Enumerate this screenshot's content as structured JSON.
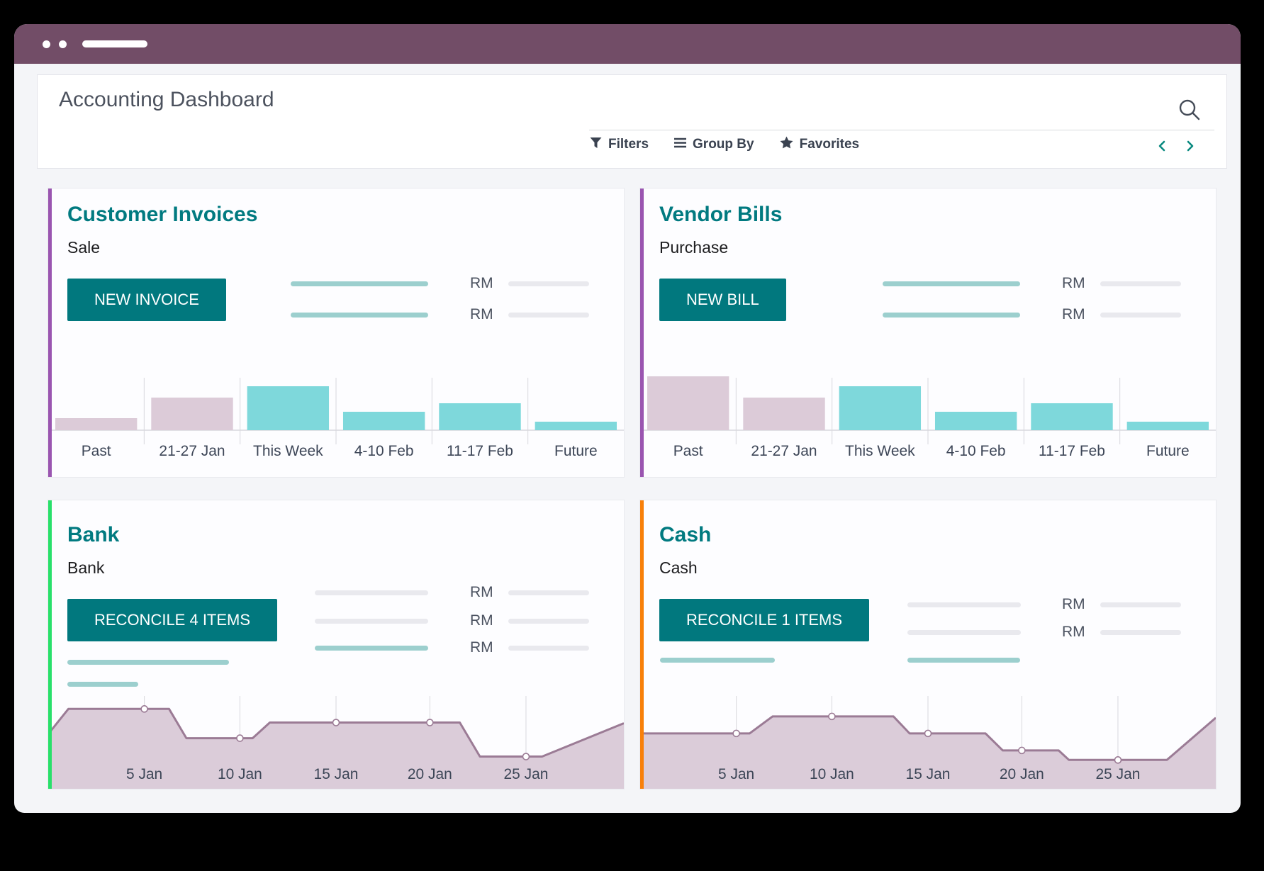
{
  "window": {
    "topbar_color": "#724d67"
  },
  "header": {
    "title": "Accounting Dashboard",
    "filters_label": "Filters",
    "group_by_label": "Group By",
    "favorites_label": "Favorites"
  },
  "icons": {
    "search": "magnifier-icon",
    "filters": "funnel-icon",
    "group_by": "list-icon",
    "favorites": "star-icon",
    "pager_previous": "chevron-left-icon",
    "pager_next": "chevron-right-icon"
  },
  "colors": {
    "heading_teal": "#017a80",
    "button_teal": "#01787e",
    "pager_teal": "#0a8a80",
    "bar_teal": "#7ed8db",
    "bar_mauve": "#dccbd8",
    "line": "#9b7b95",
    "area_fill": "#dbccd9",
    "placeholder_teal": "#9ccfce",
    "placeholder_gray": "#e9e9ee",
    "grid": "#d8d8dd",
    "chart_label": "#3d4657",
    "accent_purple": "#9a55b0",
    "accent_green": "#28e06a",
    "accent_orange": "#f8800a",
    "topbar_plum": "#724d67"
  },
  "cards": [
    {
      "title": "Customer Invoices",
      "subtitle": "Sale",
      "button": "NEW INVOICE",
      "currency": "RM",
      "accent": "#9a55b0"
    },
    {
      "title": "Vendor Bills",
      "subtitle": "Purchase",
      "button": "NEW BILL",
      "currency": "RM",
      "accent": "#9a55b0"
    },
    {
      "title": "Bank",
      "subtitle": "Bank",
      "button": "RECONCILE 4 ITEMS",
      "currency": "RM",
      "accent": "#28e06a"
    },
    {
      "title": "Cash",
      "subtitle": "Cash",
      "button": "RECONCILE 1 ITEMS",
      "currency": "RM",
      "accent": "#f8800a"
    }
  ],
  "chart_data": [
    {
      "id": "customer-invoices-bars",
      "type": "bar",
      "title": "Customer Invoices",
      "categories": [
        "Past",
        "21-27 Jan",
        "This Week",
        "4-10 Feb",
        "11-17 Feb",
        "Future"
      ],
      "values": [
        17,
        46,
        62,
        26,
        38,
        12
      ],
      "value_note": "relative bar heights in px; no numeric axis shown",
      "bar_colors": [
        "mauve",
        "mauve",
        "teal",
        "teal",
        "teal",
        "teal"
      ],
      "xlabel": "",
      "ylabel": "",
      "grid": true,
      "legend": false
    },
    {
      "id": "vendor-bills-bars",
      "type": "bar",
      "title": "Vendor Bills",
      "categories": [
        "Past",
        "21-27 Jan",
        "This Week",
        "4-10 Feb",
        "11-17 Feb",
        "Future"
      ],
      "values": [
        76,
        46,
        62,
        26,
        38,
        12
      ],
      "value_note": "relative bar heights in px; no numeric axis shown",
      "bar_colors": [
        "mauve",
        "mauve",
        "teal",
        "teal",
        "teal",
        "teal"
      ],
      "xlabel": "",
      "ylabel": "",
      "grid": true,
      "legend": false
    },
    {
      "id": "bank-balance-area",
      "type": "area",
      "title": "Bank",
      "x_labels": [
        {
          "label": "5 Jan",
          "x": 0.167
        },
        {
          "label": "10 Jan",
          "x": 0.333
        },
        {
          "label": "15 Jan",
          "x": 0.5
        },
        {
          "label": "20 Jan",
          "x": 0.663
        },
        {
          "label": "25 Jan",
          "x": 0.83
        }
      ],
      "points": [
        [
          0,
          0.46
        ],
        [
          0.035,
          0.83
        ],
        [
          0.21,
          0.83
        ],
        [
          0.24,
          0.4
        ],
        [
          0.355,
          0.4
        ],
        [
          0.385,
          0.63
        ],
        [
          0.715,
          0.63
        ],
        [
          0.75,
          0.13
        ],
        [
          0.858,
          0.13
        ],
        [
          1,
          0.62
        ]
      ],
      "markers": [
        [
          0.167,
          0.83
        ],
        [
          0.333,
          0.4
        ],
        [
          0.5,
          0.63
        ],
        [
          0.663,
          0.63
        ],
        [
          0.83,
          0.13
        ]
      ],
      "value_note": "x as fraction of chart width (Jan days), y as fraction of plot height; no numeric axis shown",
      "grid": true,
      "legend": false
    },
    {
      "id": "cash-balance-area",
      "type": "area",
      "title": "Cash",
      "x_labels": [
        {
          "label": "5 Jan",
          "x": 0.167
        },
        {
          "label": "10 Jan",
          "x": 0.333
        },
        {
          "label": "15 Jan",
          "x": 0.5
        },
        {
          "label": "20 Jan",
          "x": 0.663
        },
        {
          "label": "25 Jan",
          "x": 0.83
        }
      ],
      "points": [
        [
          0,
          0.47
        ],
        [
          0.19,
          0.47
        ],
        [
          0.23,
          0.72
        ],
        [
          0.44,
          0.72
        ],
        [
          0.468,
          0.47
        ],
        [
          0.6,
          0.47
        ],
        [
          0.63,
          0.22
        ],
        [
          0.727,
          0.22
        ],
        [
          0.745,
          0.08
        ],
        [
          0.915,
          0.08
        ],
        [
          1,
          0.7
        ]
      ],
      "markers": [
        [
          0.167,
          0.47
        ],
        [
          0.333,
          0.72
        ],
        [
          0.5,
          0.47
        ],
        [
          0.663,
          0.22
        ],
        [
          0.83,
          0.08
        ]
      ],
      "value_note": "x as fraction of chart width (Jan days), y as fraction of plot height; no numeric axis shown",
      "grid": true,
      "legend": false
    }
  ]
}
